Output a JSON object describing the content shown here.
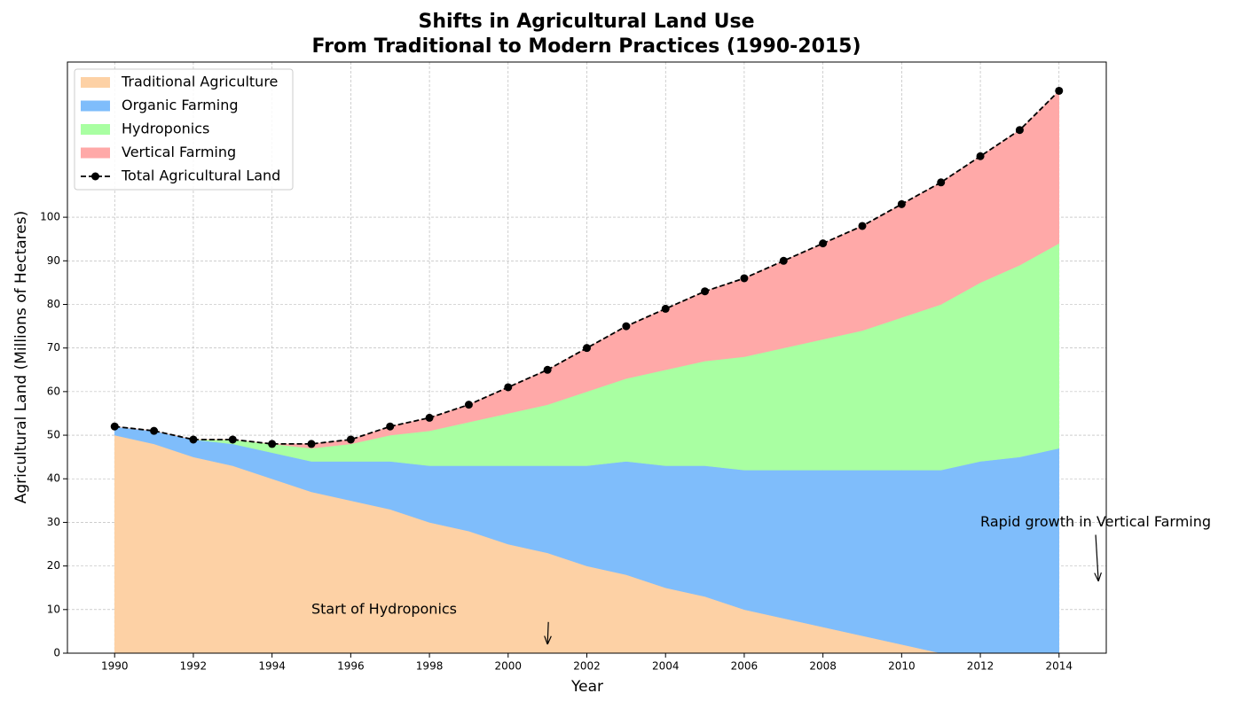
{
  "chart_data": {
    "type": "stacked_area",
    "title": "Shifts in Agricultural Land Use",
    "subtitle": "From Traditional to Modern Practices (1990-2015)",
    "x_label": "Year",
    "y_label": "Agricultural Land (Millions of Hectares)",
    "x": [
      1990,
      1991,
      1992,
      1993,
      1994,
      1995,
      1996,
      1997,
      1998,
      1999,
      2000,
      2001,
      2002,
      2003,
      2004,
      2005,
      2006,
      2007,
      2008,
      2009,
      2010,
      2011,
      2012,
      2013,
      2014
    ],
    "series": [
      {
        "name": "Traditional Agriculture",
        "color": "#fdd1a5",
        "values": [
          50,
          48,
          45,
          43,
          40,
          37,
          35,
          33,
          30,
          28,
          25,
          23,
          20,
          18,
          15,
          13,
          10,
          8,
          6,
          4,
          2,
          0,
          0,
          0,
          0
        ]
      },
      {
        "name": "Organic Farming",
        "color": "#7fbdfb",
        "values": [
          2,
          3,
          4,
          5,
          6,
          7,
          9,
          11,
          13,
          15,
          18,
          20,
          23,
          26,
          28,
          30,
          32,
          34,
          36,
          38,
          40,
          42,
          44,
          45,
          47
        ]
      },
      {
        "name": "Hydroponics",
        "color": "#a9ffa2",
        "values": [
          0,
          0,
          0,
          1,
          2,
          3,
          4,
          6,
          8,
          10,
          12,
          14,
          17,
          19,
          22,
          24,
          26,
          28,
          30,
          32,
          35,
          38,
          41,
          44,
          47
        ]
      },
      {
        "name": "Vertical Farming",
        "color": "#ffa9a8",
        "values": [
          0,
          0,
          0,
          0,
          0,
          1,
          1,
          2,
          3,
          4,
          6,
          8,
          10,
          12,
          14,
          16,
          18,
          20,
          22,
          24,
          26,
          28,
          29,
          31,
          35
        ]
      }
    ],
    "total": {
      "name": "Total Agricultural Land",
      "color": "#000000",
      "values": [
        52,
        51,
        49,
        49,
        48,
        48,
        49,
        52,
        54,
        57,
        61,
        65,
        70,
        75,
        79,
        83,
        86,
        90,
        94,
        98,
        103,
        108,
        114,
        120,
        129
      ]
    },
    "xlim": [
      1988.8,
      2015.2
    ],
    "ylim": [
      0,
      135.6
    ],
    "xticks": [
      1990,
      1992,
      1994,
      1996,
      1998,
      2000,
      2002,
      2004,
      2006,
      2008,
      2010,
      2012,
      2014
    ],
    "yticks": [
      0,
      10,
      20,
      30,
      40,
      50,
      60,
      70,
      80,
      90,
      100
    ],
    "grid": true,
    "legend": "upper left",
    "annotations": [
      {
        "text": "Start of Hydroponics",
        "x": 2001,
        "y": 2,
        "text_x": 1995,
        "text_y": 10
      },
      {
        "text": "Rapid growth in Vertical Farming",
        "x": 2015,
        "y": 16.5,
        "text_x": 2012,
        "text_y": 30
      }
    ]
  }
}
